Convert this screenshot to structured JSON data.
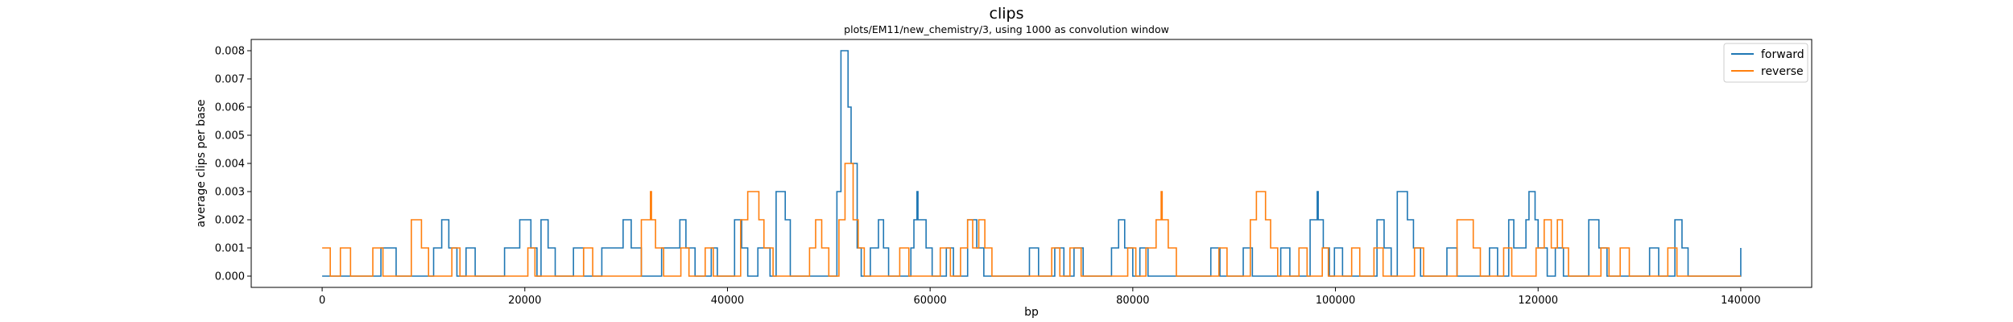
{
  "chart_data": {
    "type": "line",
    "title": "clips",
    "subtitle": "plots/EM11/new_chemistry/3, using 1000 as convolution window",
    "xlabel": "bp",
    "ylabel": "average clips per base",
    "xlim": [
      -7000,
      147000
    ],
    "ylim": [
      -0.0004,
      0.0084
    ],
    "xticks": [
      0,
      20000,
      40000,
      60000,
      80000,
      100000,
      120000,
      140000
    ],
    "xtick_labels": [
      "0",
      "20000",
      "40000",
      "60000",
      "80000",
      "100000",
      "120000",
      "140000"
    ],
    "yticks": [
      0.0,
      0.001,
      0.002,
      0.003,
      0.004,
      0.005,
      0.006,
      0.007,
      0.008
    ],
    "ytick_labels": [
      "0.000",
      "0.001",
      "0.002",
      "0.003",
      "0.004",
      "0.005",
      "0.006",
      "0.007",
      "0.008"
    ],
    "grid": false,
    "legend": "top-right",
    "x_end": 140000,
    "series": [
      {
        "name": "forward",
        "color": "#1f77b4",
        "steps": [
          [
            0,
            0
          ],
          [
            5800,
            0.001
          ],
          [
            7300,
            0
          ],
          [
            11000,
            0.001
          ],
          [
            11800,
            0.002
          ],
          [
            12500,
            0.001
          ],
          [
            13300,
            0
          ],
          [
            14200,
            0.001
          ],
          [
            15100,
            0
          ],
          [
            18000,
            0.001
          ],
          [
            19500,
            0.002
          ],
          [
            20600,
            0.001
          ],
          [
            21200,
            0
          ],
          [
            21600,
            0.002
          ],
          [
            22300,
            0.001
          ],
          [
            23000,
            0
          ],
          [
            24800,
            0.001
          ],
          [
            25800,
            0
          ],
          [
            27600,
            0.001
          ],
          [
            29700,
            0.002
          ],
          [
            30500,
            0.001
          ],
          [
            31500,
            0
          ],
          [
            33500,
            0.001
          ],
          [
            35300,
            0.002
          ],
          [
            35900,
            0.001
          ],
          [
            36800,
            0
          ],
          [
            38400,
            0.001
          ],
          [
            39000,
            0
          ],
          [
            40700,
            0.002
          ],
          [
            41400,
            0.001
          ],
          [
            42000,
            0
          ],
          [
            43000,
            0.001
          ],
          [
            44200,
            0
          ],
          [
            44800,
            0.003
          ],
          [
            45700,
            0.002
          ],
          [
            46200,
            0
          ],
          [
            50800,
            0.003
          ],
          [
            51200,
            0.008
          ],
          [
            51900,
            0.006
          ],
          [
            52200,
            0.004
          ],
          [
            52800,
            0.001
          ],
          [
            53200,
            0
          ],
          [
            54100,
            0.001
          ],
          [
            54900,
            0.002
          ],
          [
            55400,
            0.001
          ],
          [
            55900,
            0
          ],
          [
            58100,
            0.001
          ],
          [
            58400,
            0.002
          ],
          [
            58700,
            0.003
          ],
          [
            58800,
            0.002
          ],
          [
            59600,
            0.001
          ],
          [
            60200,
            0
          ],
          [
            61600,
            0.001
          ],
          [
            62300,
            0
          ],
          [
            63700,
            0.002
          ],
          [
            64600,
            0.001
          ],
          [
            65300,
            0
          ],
          [
            69800,
            0.001
          ],
          [
            70700,
            0
          ],
          [
            72300,
            0.001
          ],
          [
            73200,
            0
          ],
          [
            74200,
            0.001
          ],
          [
            75100,
            0
          ],
          [
            77900,
            0.001
          ],
          [
            78600,
            0.002
          ],
          [
            79200,
            0.001
          ],
          [
            80000,
            0
          ],
          [
            80700,
            0.001
          ],
          [
            81500,
            0
          ],
          [
            87700,
            0.001
          ],
          [
            88600,
            0
          ],
          [
            90900,
            0.001
          ],
          [
            91800,
            0
          ],
          [
            94600,
            0.001
          ],
          [
            95500,
            0
          ],
          [
            97500,
            0.002
          ],
          [
            98200,
            0.003
          ],
          [
            98300,
            0.002
          ],
          [
            98800,
            0.001
          ],
          [
            99400,
            0
          ],
          [
            99900,
            0.001
          ],
          [
            100700,
            0
          ],
          [
            104100,
            0.002
          ],
          [
            104800,
            0.001
          ],
          [
            105500,
            0
          ],
          [
            106100,
            0.003
          ],
          [
            107100,
            0.002
          ],
          [
            107700,
            0.001
          ],
          [
            108400,
            0
          ],
          [
            111000,
            0.001
          ],
          [
            112000,
            0
          ],
          [
            115200,
            0.001
          ],
          [
            116000,
            0
          ],
          [
            117100,
            0.002
          ],
          [
            117600,
            0.001
          ],
          [
            118800,
            0.002
          ],
          [
            119100,
            0.003
          ],
          [
            119700,
            0.002
          ],
          [
            120000,
            0.001
          ],
          [
            120900,
            0
          ],
          [
            121700,
            0.001
          ],
          [
            122500,
            0
          ],
          [
            125000,
            0.002
          ],
          [
            126000,
            0.001
          ],
          [
            126800,
            0
          ],
          [
            131000,
            0.001
          ],
          [
            131900,
            0
          ],
          [
            133500,
            0.002
          ],
          [
            134200,
            0.001
          ],
          [
            134800,
            0
          ],
          [
            140000,
            0.001
          ]
        ]
      },
      {
        "name": "reverse",
        "color": "#ff7f0e",
        "steps": [
          [
            0,
            0.001
          ],
          [
            800,
            0
          ],
          [
            1800,
            0.001
          ],
          [
            2800,
            0
          ],
          [
            5000,
            0.001
          ],
          [
            6000,
            0
          ],
          [
            8800,
            0.002
          ],
          [
            9800,
            0.001
          ],
          [
            10500,
            0
          ],
          [
            12800,
            0.001
          ],
          [
            13600,
            0
          ],
          [
            20300,
            0.001
          ],
          [
            21000,
            0
          ],
          [
            25800,
            0.001
          ],
          [
            26700,
            0
          ],
          [
            31500,
            0.002
          ],
          [
            32400,
            0.003
          ],
          [
            32500,
            0.002
          ],
          [
            32900,
            0.001
          ],
          [
            33700,
            0
          ],
          [
            35400,
            0.001
          ],
          [
            36200,
            0
          ],
          [
            37800,
            0.001
          ],
          [
            38600,
            0
          ],
          [
            41300,
            0.002
          ],
          [
            42000,
            0.003
          ],
          [
            43100,
            0.002
          ],
          [
            43600,
            0.001
          ],
          [
            44500,
            0
          ],
          [
            48100,
            0.001
          ],
          [
            48700,
            0.002
          ],
          [
            49300,
            0.001
          ],
          [
            50000,
            0
          ],
          [
            51000,
            0.002
          ],
          [
            51600,
            0.004
          ],
          [
            52400,
            0.002
          ],
          [
            52900,
            0.001
          ],
          [
            53500,
            0
          ],
          [
            57000,
            0.001
          ],
          [
            57900,
            0
          ],
          [
            61000,
            0.001
          ],
          [
            62000,
            0
          ],
          [
            63000,
            0.001
          ],
          [
            63700,
            0.002
          ],
          [
            64200,
            0.001
          ],
          [
            64800,
            0.002
          ],
          [
            65400,
            0.001
          ],
          [
            66100,
            0
          ],
          [
            72000,
            0.001
          ],
          [
            72800,
            0
          ],
          [
            73800,
            0.001
          ],
          [
            74900,
            0
          ],
          [
            79500,
            0.001
          ],
          [
            80300,
            0
          ],
          [
            81300,
            0.001
          ],
          [
            82300,
            0.002
          ],
          [
            82800,
            0.003
          ],
          [
            82900,
            0.002
          ],
          [
            83500,
            0.001
          ],
          [
            84300,
            0
          ],
          [
            88500,
            0.001
          ],
          [
            89300,
            0
          ],
          [
            91600,
            0.002
          ],
          [
            92200,
            0.003
          ],
          [
            93100,
            0.002
          ],
          [
            93600,
            0.001
          ],
          [
            94300,
            0
          ],
          [
            96400,
            0.001
          ],
          [
            97200,
            0
          ],
          [
            98700,
            0.001
          ],
          [
            99300,
            0
          ],
          [
            101600,
            0.001
          ],
          [
            102400,
            0
          ],
          [
            103800,
            0.001
          ],
          [
            104700,
            0
          ],
          [
            107800,
            0.001
          ],
          [
            108700,
            0
          ],
          [
            112000,
            0.002
          ],
          [
            113600,
            0.001
          ],
          [
            114300,
            0
          ],
          [
            116600,
            0.001
          ],
          [
            117400,
            0
          ],
          [
            119800,
            0.001
          ],
          [
            120600,
            0.002
          ],
          [
            121300,
            0.001
          ],
          [
            121900,
            0.002
          ],
          [
            122400,
            0.001
          ],
          [
            123000,
            0
          ],
          [
            126200,
            0.001
          ],
          [
            127000,
            0
          ],
          [
            128100,
            0.001
          ],
          [
            129000,
            0
          ],
          [
            132800,
            0.001
          ],
          [
            133700,
            0
          ]
        ]
      }
    ]
  }
}
